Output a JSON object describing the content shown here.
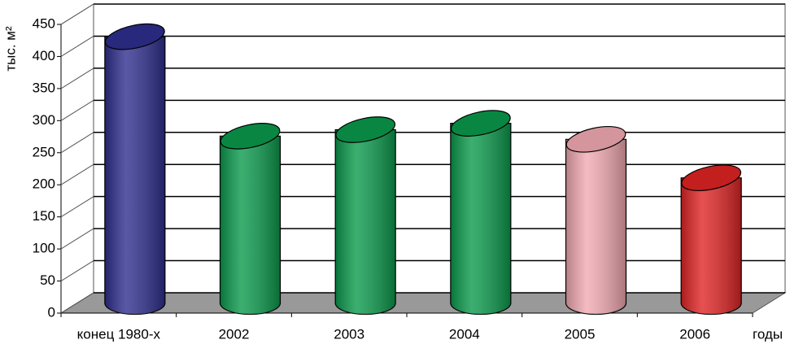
{
  "chart_data": {
    "type": "bar3d",
    "y_label": "тыс. м²",
    "x_label": "годы",
    "categories": [
      "конец 1980-х",
      "2002",
      "2003",
      "2004",
      "2005",
      "2006"
    ],
    "values": [
      415,
      260,
      270,
      280,
      255,
      195
    ],
    "colors": [
      "#2e2e8e",
      "#0b9a4c",
      "#0b9a4c",
      "#0b9a4c",
      "#f2aab2",
      "#e02424"
    ],
    "ylim": [
      0,
      450
    ],
    "yticks": [
      0,
      50,
      100,
      150,
      200,
      250,
      300,
      350,
      400,
      450
    ],
    "grid": true
  }
}
